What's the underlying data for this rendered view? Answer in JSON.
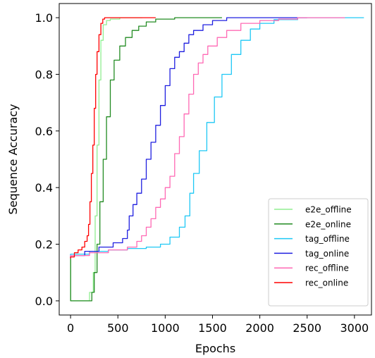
{
  "chart_data": {
    "type": "line",
    "xlabel": "Epochs",
    "ylabel": "Sequence Accuracy",
    "xlim": [
      -120,
      3180
    ],
    "ylim": [
      -0.05,
      1.05
    ],
    "xticks": [
      0,
      500,
      1000,
      1500,
      2000,
      2500,
      3000
    ],
    "yticks": [
      0.0,
      0.2,
      0.4,
      0.6,
      0.8,
      1.0
    ],
    "xtick_labels": [
      "0",
      "500",
      "1000",
      "1500",
      "2000",
      "2500",
      "3000"
    ],
    "ytick_labels": [
      "0.0",
      "0.2",
      "0.4",
      "0.6",
      "0.8",
      "1.0"
    ],
    "grid": false,
    "legend_position": "lower-right",
    "series": [
      {
        "name": "e2e_offline",
        "color": "#90ee90",
        "points": [
          [
            0,
            0.15
          ],
          [
            1,
            0.0
          ],
          [
            150,
            0.0
          ],
          [
            200,
            0.03
          ],
          [
            240,
            0.1
          ],
          [
            260,
            0.3
          ],
          [
            280,
            0.55
          ],
          [
            300,
            0.78
          ],
          [
            320,
            0.92
          ],
          [
            345,
            0.975
          ],
          [
            380,
            0.99
          ],
          [
            420,
            0.995
          ],
          [
            520,
            1.0
          ],
          [
            760,
            1.0
          ]
        ]
      },
      {
        "name": "e2e_online",
        "color": "#228b22",
        "points": [
          [
            0,
            0.15
          ],
          [
            1,
            0.0
          ],
          [
            180,
            0.0
          ],
          [
            225,
            0.03
          ],
          [
            250,
            0.1
          ],
          [
            280,
            0.2
          ],
          [
            310,
            0.35
          ],
          [
            345,
            0.5
          ],
          [
            380,
            0.65
          ],
          [
            420,
            0.78
          ],
          [
            460,
            0.85
          ],
          [
            520,
            0.9
          ],
          [
            580,
            0.93
          ],
          [
            650,
            0.955
          ],
          [
            720,
            0.97
          ],
          [
            800,
            0.985
          ],
          [
            900,
            0.995
          ],
          [
            1100,
            1.0
          ],
          [
            1600,
            1.0
          ]
        ]
      },
      {
        "name": "tag_offline",
        "color": "#1ec8f5",
        "points": [
          [
            0,
            0.15
          ],
          [
            0,
            0.165
          ],
          [
            200,
            0.175
          ],
          [
            400,
            0.18
          ],
          [
            600,
            0.185
          ],
          [
            800,
            0.19
          ],
          [
            950,
            0.2
          ],
          [
            1050,
            0.225
          ],
          [
            1150,
            0.26
          ],
          [
            1210,
            0.3
          ],
          [
            1260,
            0.38
          ],
          [
            1300,
            0.45
          ],
          [
            1360,
            0.53
          ],
          [
            1440,
            0.63
          ],
          [
            1520,
            0.72
          ],
          [
            1600,
            0.8
          ],
          [
            1700,
            0.87
          ],
          [
            1800,
            0.92
          ],
          [
            1900,
            0.96
          ],
          [
            2000,
            0.98
          ],
          [
            2150,
            0.993
          ],
          [
            2400,
            1.0
          ],
          [
            3100,
            1.0
          ]
        ]
      },
      {
        "name": "tag_online",
        "color": "#1f1fe0",
        "points": [
          [
            0,
            0.15
          ],
          [
            0,
            0.16
          ],
          [
            150,
            0.175
          ],
          [
            300,
            0.19
          ],
          [
            450,
            0.205
          ],
          [
            550,
            0.22
          ],
          [
            600,
            0.25
          ],
          [
            620,
            0.3
          ],
          [
            660,
            0.34
          ],
          [
            700,
            0.38
          ],
          [
            750,
            0.43
          ],
          [
            800,
            0.5
          ],
          [
            850,
            0.56
          ],
          [
            900,
            0.62
          ],
          [
            950,
            0.69
          ],
          [
            1000,
            0.76
          ],
          [
            1050,
            0.82
          ],
          [
            1100,
            0.86
          ],
          [
            1150,
            0.88
          ],
          [
            1200,
            0.91
          ],
          [
            1250,
            0.94
          ],
          [
            1300,
            0.955
          ],
          [
            1400,
            0.975
          ],
          [
            1500,
            0.99
          ],
          [
            1650,
            1.0
          ],
          [
            2500,
            1.0
          ]
        ]
      },
      {
        "name": "rec_offline",
        "color": "#ff69b4",
        "points": [
          [
            0,
            0.15
          ],
          [
            0,
            0.16
          ],
          [
            200,
            0.17
          ],
          [
            400,
            0.18
          ],
          [
            600,
            0.19
          ],
          [
            700,
            0.21
          ],
          [
            750,
            0.23
          ],
          [
            800,
            0.26
          ],
          [
            850,
            0.29
          ],
          [
            900,
            0.33
          ],
          [
            950,
            0.36
          ],
          [
            1000,
            0.4
          ],
          [
            1050,
            0.44
          ],
          [
            1100,
            0.52
          ],
          [
            1150,
            0.58
          ],
          [
            1200,
            0.66
          ],
          [
            1250,
            0.73
          ],
          [
            1300,
            0.8
          ],
          [
            1350,
            0.84
          ],
          [
            1400,
            0.87
          ],
          [
            1450,
            0.9
          ],
          [
            1550,
            0.93
          ],
          [
            1650,
            0.955
          ],
          [
            1800,
            0.98
          ],
          [
            2000,
            0.99
          ],
          [
            2200,
            0.995
          ],
          [
            2400,
            1.0
          ],
          [
            2900,
            1.0
          ]
        ]
      },
      {
        "name": "rec_online",
        "color": "#ff0000",
        "points": [
          [
            0,
            0.15
          ],
          [
            0,
            0.155
          ],
          [
            40,
            0.17
          ],
          [
            80,
            0.18
          ],
          [
            120,
            0.19
          ],
          [
            150,
            0.21
          ],
          [
            175,
            0.23
          ],
          [
            190,
            0.27
          ],
          [
            205,
            0.35
          ],
          [
            220,
            0.45
          ],
          [
            235,
            0.55
          ],
          [
            250,
            0.68
          ],
          [
            265,
            0.8
          ],
          [
            280,
            0.88
          ],
          [
            300,
            0.94
          ],
          [
            320,
            0.98
          ],
          [
            340,
            0.995
          ],
          [
            360,
            1.0
          ],
          [
            900,
            1.0
          ]
        ]
      }
    ]
  }
}
